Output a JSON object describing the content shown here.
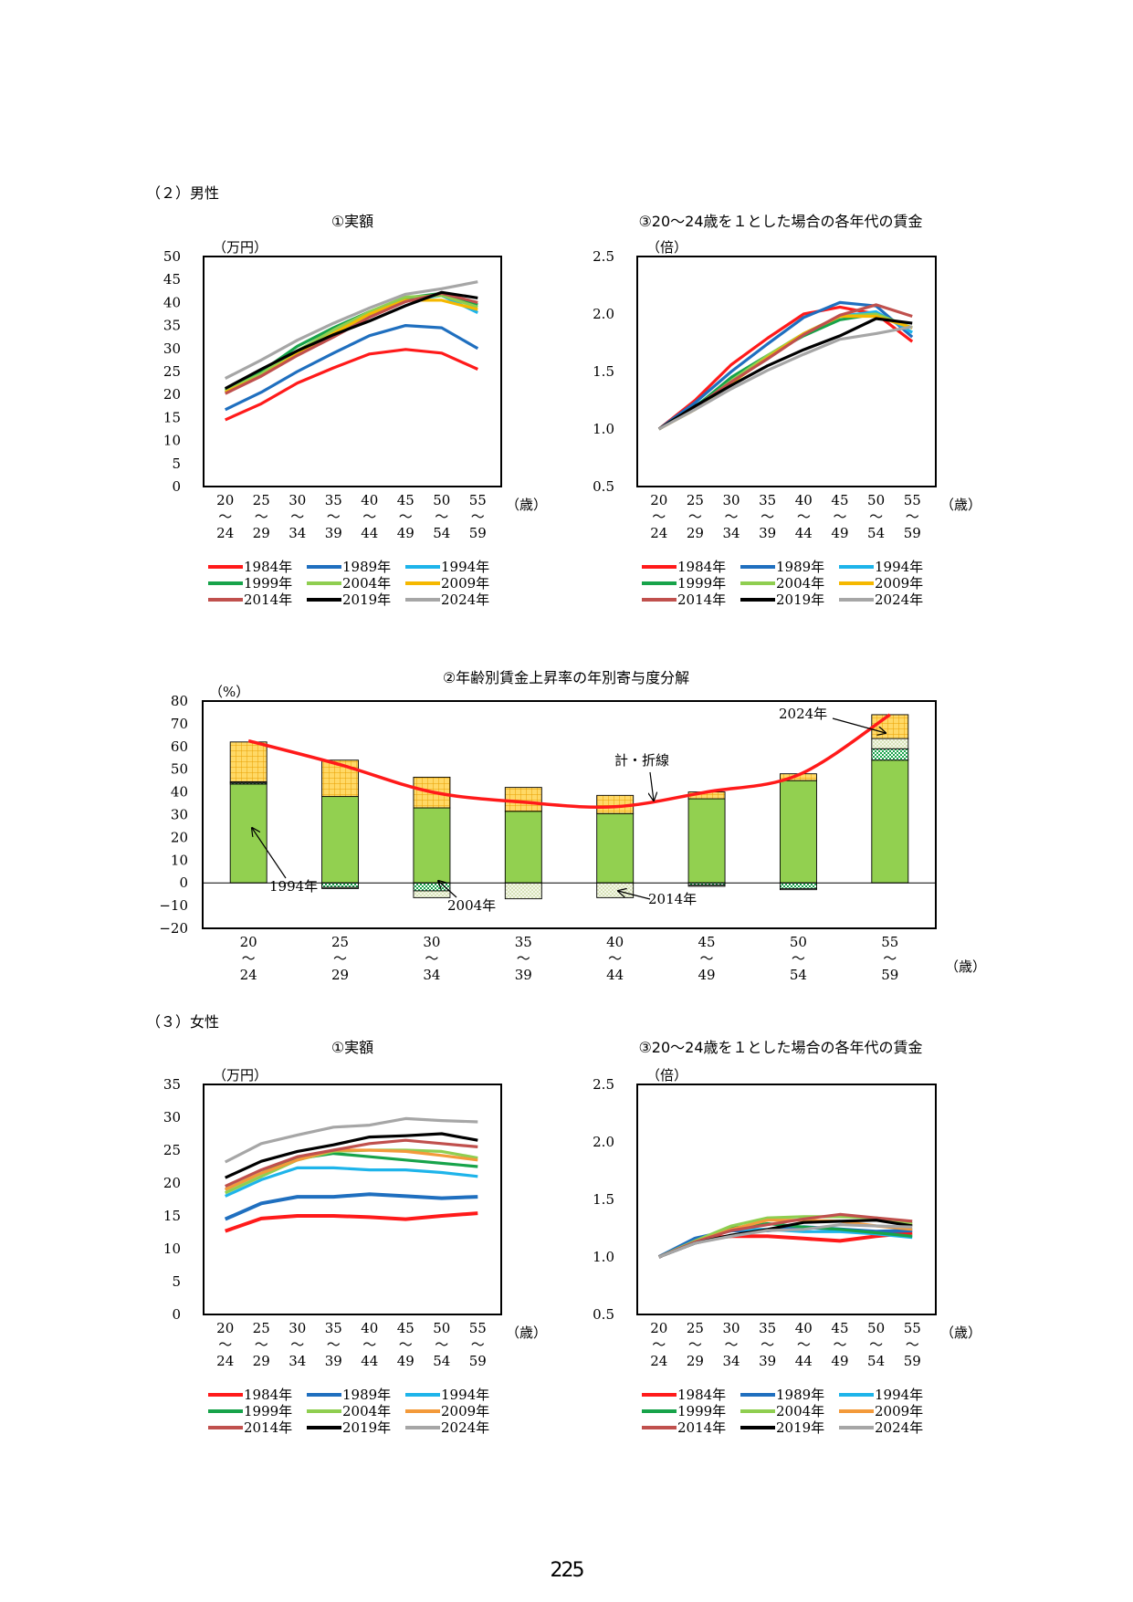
{
  "sections": {
    "male": "（２）男性",
    "female": "（３）女性"
  },
  "page_number": "225",
  "colors": {
    "1984年": "#ff1a1a",
    "1989年": "#1f6fbf",
    "1994年": "#1eb4ea",
    "1999年": "#17a34a",
    "2004年": "#8fce50",
    "2009年": "#f5b800",
    "2014年": "#c0504d",
    "2019年": "#000000",
    "2024年": "#a6a6a6",
    "female_2009年": "#f39a3a"
  },
  "chart_data": [
    {
      "id": "male_amount",
      "type": "line",
      "title": "①実額",
      "ylabel": "（万円）",
      "xunit": "（歳）",
      "ylim": [
        0,
        50
      ],
      "yticks": [
        "0",
        "5",
        "10",
        "15",
        "20",
        "25",
        "30",
        "35",
        "40",
        "45",
        "50"
      ],
      "categories": [
        [
          "20",
          "〜",
          "24"
        ],
        [
          "25",
          "〜",
          "29"
        ],
        [
          "30",
          "〜",
          "34"
        ],
        [
          "35",
          "〜",
          "39"
        ],
        [
          "40",
          "〜",
          "44"
        ],
        [
          "45",
          "〜",
          "49"
        ],
        [
          "50",
          "〜",
          "54"
        ],
        [
          "55",
          "〜",
          "59"
        ]
      ],
      "legend": [
        "1984年",
        "1989年",
        "1994年",
        "1999年",
        "2004年",
        "2009年",
        "2014年",
        "2019年",
        "2024年"
      ],
      "series": [
        {
          "name": "1984年",
          "values": [
            14.5,
            18.0,
            22.5,
            25.8,
            28.8,
            29.8,
            29.0,
            25.5
          ]
        },
        {
          "name": "1989年",
          "values": [
            16.7,
            20.5,
            25.0,
            29.0,
            32.8,
            35.0,
            34.5,
            30.0
          ]
        },
        {
          "name": "1994年",
          "values": [
            20.5,
            24.5,
            29.0,
            33.0,
            37.5,
            40.5,
            41.5,
            37.8
          ]
        },
        {
          "name": "1999年",
          "values": [
            21.0,
            25.0,
            30.5,
            34.5,
            38.0,
            41.0,
            42.0,
            39.5
          ]
        },
        {
          "name": "2004年",
          "values": [
            20.8,
            24.5,
            29.5,
            34.0,
            38.0,
            41.2,
            41.5,
            39.0
          ]
        },
        {
          "name": "2009年",
          "values": [
            20.5,
            24.0,
            28.8,
            33.3,
            37.5,
            40.5,
            40.5,
            38.5
          ]
        },
        {
          "name": "2014年",
          "values": [
            20.2,
            24.0,
            28.5,
            32.5,
            36.8,
            40.2,
            42.0,
            40.0
          ]
        },
        {
          "name": "2019年",
          "values": [
            21.3,
            25.5,
            29.5,
            33.0,
            36.0,
            39.3,
            42.2,
            41.0
          ]
        },
        {
          "name": "2024年",
          "values": [
            23.5,
            27.5,
            31.8,
            35.5,
            38.8,
            41.8,
            43.0,
            44.5
          ]
        }
      ]
    },
    {
      "id": "male_ratio",
      "type": "line",
      "title": "③20〜24歳を１とした場合の各年代の賃金",
      "ylabel": "（倍）",
      "xunit": "（歳）",
      "ylim": [
        0.5,
        2.5
      ],
      "yticks": [
        "0.5",
        "1.0",
        "1.5",
        "2.0",
        "2.5"
      ],
      "categories": [
        [
          "20",
          "〜",
          "24"
        ],
        [
          "25",
          "〜",
          "29"
        ],
        [
          "30",
          "〜",
          "34"
        ],
        [
          "35",
          "〜",
          "39"
        ],
        [
          "40",
          "〜",
          "44"
        ],
        [
          "45",
          "〜",
          "49"
        ],
        [
          "50",
          "〜",
          "54"
        ],
        [
          "55",
          "〜",
          "59"
        ]
      ],
      "legend": [
        "1984年",
        "1989年",
        "1994年",
        "1999年",
        "2004年",
        "2009年",
        "2014年",
        "2019年",
        "2024年"
      ],
      "series": [
        {
          "name": "1984年",
          "values": [
            1.0,
            1.25,
            1.56,
            1.79,
            2.0,
            2.06,
            2.0,
            1.76
          ]
        },
        {
          "name": "1989年",
          "values": [
            1.0,
            1.23,
            1.5,
            1.74,
            1.97,
            2.1,
            2.07,
            1.8
          ]
        },
        {
          "name": "1994年",
          "values": [
            1.0,
            1.2,
            1.42,
            1.61,
            1.83,
            1.98,
            2.02,
            1.84
          ]
        },
        {
          "name": "1999年",
          "values": [
            1.0,
            1.19,
            1.45,
            1.64,
            1.81,
            1.95,
            2.0,
            1.88
          ]
        },
        {
          "name": "2004年",
          "values": [
            1.0,
            1.18,
            1.42,
            1.64,
            1.83,
            1.98,
            2.0,
            1.88
          ]
        },
        {
          "name": "2009年",
          "values": [
            1.0,
            1.17,
            1.4,
            1.62,
            1.83,
            1.98,
            1.98,
            1.88
          ]
        },
        {
          "name": "2014年",
          "values": [
            1.0,
            1.19,
            1.41,
            1.61,
            1.82,
            1.99,
            2.08,
            1.98
          ]
        },
        {
          "name": "2019年",
          "values": [
            1.0,
            1.2,
            1.38,
            1.55,
            1.69,
            1.81,
            1.96,
            1.92
          ]
        },
        {
          "name": "2024年",
          "values": [
            1.0,
            1.17,
            1.35,
            1.51,
            1.65,
            1.78,
            1.83,
            1.89
          ]
        }
      ]
    },
    {
      "id": "male_decomp",
      "type": "bar",
      "title": "②年齢別賃金上昇率の年別寄与度分解",
      "ylabel": "（%）",
      "xunit": "（歳）",
      "ylim": [
        -20,
        80
      ],
      "yticks": [
        "−20",
        "−10",
        "0",
        "10",
        "20",
        "30",
        "40",
        "50",
        "60",
        "70",
        "80"
      ],
      "categories": [
        [
          "20",
          "〜",
          "24"
        ],
        [
          "25",
          "〜",
          "29"
        ],
        [
          "30",
          "〜",
          "34"
        ],
        [
          "35",
          "〜",
          "39"
        ],
        [
          "40",
          "〜",
          "44"
        ],
        [
          "45",
          "〜",
          "49"
        ],
        [
          "50",
          "〜",
          "54"
        ],
        [
          "55",
          "〜",
          "59"
        ]
      ],
      "components": [
        {
          "name": "1994年",
          "values": [
            43.5,
            38.0,
            33.0,
            31.5,
            30.5,
            37.0,
            45.0,
            54.0
          ]
        },
        {
          "name": "1999年",
          "values": [
            0.5,
            -2.0,
            -3.5,
            0,
            0,
            -1.0,
            -2.5,
            5.0
          ]
        },
        {
          "name": "2004年",
          "values": [
            0.5,
            -0.5,
            -3.0,
            -7.0,
            -6.5,
            -0.5,
            -0.5,
            4.5
          ]
        },
        {
          "name": "2009年",
          "values": [
            17.5,
            16.0,
            13.5,
            10.5,
            8.0,
            3.0,
            3.0,
            10.5
          ]
        }
      ],
      "total": [
        62.5,
        52.0,
        40.0,
        35.5,
        33.5,
        40.0,
        47.5,
        74.0
      ],
      "annotations": [
        {
          "text": "1994年"
        },
        {
          "text": "2004年"
        },
        {
          "text": "2014年"
        },
        {
          "text": "計・折線"
        },
        {
          "text": "2024年"
        }
      ]
    },
    {
      "id": "female_amount",
      "type": "line",
      "title": "①実額",
      "ylabel": "（万円）",
      "xunit": "（歳）",
      "ylim": [
        0,
        35
      ],
      "yticks": [
        "0",
        "5",
        "10",
        "15",
        "20",
        "25",
        "30",
        "35"
      ],
      "categories": [
        [
          "20",
          "〜",
          "24"
        ],
        [
          "25",
          "〜",
          "29"
        ],
        [
          "30",
          "〜",
          "34"
        ],
        [
          "35",
          "〜",
          "39"
        ],
        [
          "40",
          "〜",
          "44"
        ],
        [
          "45",
          "〜",
          "49"
        ],
        [
          "50",
          "〜",
          "54"
        ],
        [
          "55",
          "〜",
          "59"
        ]
      ],
      "legend": [
        "1984年",
        "1989年",
        "1994年",
        "1999年",
        "2004年",
        "2009年",
        "2014年",
        "2019年",
        "2024年"
      ],
      "series": [
        {
          "name": "1984年",
          "values": [
            12.7,
            14.6,
            15.0,
            15.0,
            14.8,
            14.5,
            15.0,
            15.4
          ]
        },
        {
          "name": "1989年",
          "values": [
            14.5,
            16.9,
            17.9,
            17.9,
            18.3,
            18.0,
            17.7,
            17.9
          ]
        },
        {
          "name": "1994年",
          "values": [
            18.0,
            20.5,
            22.3,
            22.3,
            22.0,
            22.0,
            21.6,
            21.0
          ]
        },
        {
          "name": "1999年",
          "values": [
            19.0,
            21.5,
            23.7,
            24.5,
            24.0,
            23.5,
            23.0,
            22.5
          ]
        },
        {
          "name": "2004年",
          "values": [
            18.5,
            21.0,
            23.5,
            24.8,
            25.0,
            25.0,
            24.8,
            23.8
          ]
        },
        {
          "name": "2009年",
          "values": [
            19.0,
            21.5,
            23.5,
            25.0,
            25.0,
            24.8,
            24.2,
            23.5
          ]
        },
        {
          "name": "2014年",
          "values": [
            19.5,
            22.0,
            24.0,
            25.0,
            26.0,
            26.5,
            26.0,
            25.5
          ]
        },
        {
          "name": "2019年",
          "values": [
            20.8,
            23.3,
            24.8,
            25.8,
            27.0,
            27.2,
            27.5,
            26.5
          ]
        },
        {
          "name": "2024年",
          "values": [
            23.2,
            26.0,
            27.3,
            28.5,
            28.8,
            29.8,
            29.5,
            29.3
          ]
        }
      ]
    },
    {
      "id": "female_ratio",
      "type": "line",
      "title": "③20〜24歳を１とした場合の各年代の賃金",
      "ylabel": "（倍）",
      "xunit": "（歳）",
      "ylim": [
        0.5,
        2.5
      ],
      "yticks": [
        "0.5",
        "1.0",
        "1.5",
        "2.0",
        "2.5"
      ],
      "categories": [
        [
          "20",
          "〜",
          "24"
        ],
        [
          "25",
          "〜",
          "29"
        ],
        [
          "30",
          "〜",
          "34"
        ],
        [
          "35",
          "〜",
          "39"
        ],
        [
          "40",
          "〜",
          "44"
        ],
        [
          "45",
          "〜",
          "49"
        ],
        [
          "50",
          "〜",
          "54"
        ],
        [
          "55",
          "〜",
          "59"
        ]
      ],
      "legend": [
        "1984年",
        "1989年",
        "1994年",
        "1999年",
        "2004年",
        "2009年",
        "2014年",
        "2019年",
        "2024年"
      ],
      "series": [
        {
          "name": "1984年",
          "values": [
            1.0,
            1.15,
            1.18,
            1.18,
            1.16,
            1.14,
            1.18,
            1.21
          ]
        },
        {
          "name": "1989年",
          "values": [
            1.0,
            1.16,
            1.23,
            1.23,
            1.26,
            1.24,
            1.22,
            1.23
          ]
        },
        {
          "name": "1994年",
          "values": [
            1.0,
            1.14,
            1.24,
            1.24,
            1.22,
            1.22,
            1.2,
            1.17
          ]
        },
        {
          "name": "1999年",
          "values": [
            1.0,
            1.13,
            1.25,
            1.29,
            1.26,
            1.24,
            1.21,
            1.18
          ]
        },
        {
          "name": "2004年",
          "values": [
            1.0,
            1.14,
            1.27,
            1.34,
            1.35,
            1.35,
            1.34,
            1.29
          ]
        },
        {
          "name": "2009年",
          "values": [
            1.0,
            1.13,
            1.24,
            1.32,
            1.32,
            1.31,
            1.27,
            1.24
          ]
        },
        {
          "name": "2014年",
          "values": [
            1.0,
            1.13,
            1.23,
            1.28,
            1.33,
            1.37,
            1.34,
            1.31
          ]
        },
        {
          "name": "2019年",
          "values": [
            1.0,
            1.12,
            1.19,
            1.24,
            1.3,
            1.31,
            1.32,
            1.27
          ]
        },
        {
          "name": "2024年",
          "values": [
            1.0,
            1.12,
            1.18,
            1.23,
            1.24,
            1.28,
            1.27,
            1.26
          ]
        }
      ]
    }
  ]
}
